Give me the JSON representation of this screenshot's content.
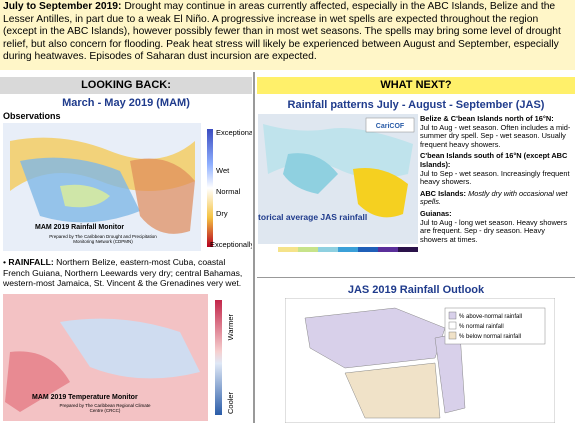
{
  "intro": {
    "lead": "July to September 2019:",
    "text": "Drought may continue in areas currently affected, especially in the ABC Islands, Belize and the Lesser Antilles, in part due to a weak El Niño. A progressive increase in wet spells are expected throughout the region (except in the ABC Islands), however possibly fewer than in most wet seasons. The spells may bring some level of drought relief, but also concern for flooding. Peak heat stress will likely be experienced between August and September, especially during heatwaves. Episodes of Saharan dust incursion are expected."
  },
  "left": {
    "header": "LOOKING BACK:",
    "title": "March - May 2019 (MAM)",
    "subtitle": "Observations",
    "rain_map": {
      "caption": "MAM 2019 Rainfall Monitor",
      "credit": "Prepared by The Caribbean Drought and Precipitation Monitoring Network (CDPMN)",
      "legend": [
        "Exceptional wet",
        "Wet",
        "Normal",
        "Dry",
        "Exceptionally dry"
      ]
    },
    "bullet": {
      "label": "RAINFALL:",
      "text": "Northern Belize, eastern-most Cuba, coastal French Guiana, Northern Leewards very dry; central Bahamas, western-most Jamaica, St. Vincent & the Grenadines very wet."
    },
    "temp_map": {
      "caption": "MAM 2019 Temperature Monitor",
      "credit": "Prepared by The Caribbean Regional Climate Centre (CRCC)",
      "legend": [
        "Warmer",
        "Cooler"
      ]
    }
  },
  "right": {
    "header": "WHAT NEXT?",
    "title": "Rainfall patterns July - August - September (JAS)",
    "map": {
      "caption": "Historical average JAS rainfall",
      "logo": "CariCOF"
    },
    "regions": [
      {
        "name": "Belize & C'bean Islands north of 16°N:",
        "text": "Jul to Aug - wet season. Often includes a mid-summer dry spell. Sep - wet season. Usually frequent heavy showers."
      },
      {
        "name": "C'bean Islands south of 16°N (except ABC Islands):",
        "text": "Jul to Sep - wet season. Increasingly frequent heavy showers."
      },
      {
        "name": "ABC Islands:",
        "text": "Mostly dry with occasional wet spells."
      },
      {
        "name": "Guianas:",
        "text": "Jul to Aug - long wet season. Heavy showers are frequent. Sep - dry season. Heavy showers at times."
      }
    ],
    "outlook": {
      "title": "JAS 2019 Rainfall Outlook",
      "legend": [
        "% above-normal rainfall",
        "% normal rainfall",
        "% below normal rainfall"
      ]
    }
  }
}
